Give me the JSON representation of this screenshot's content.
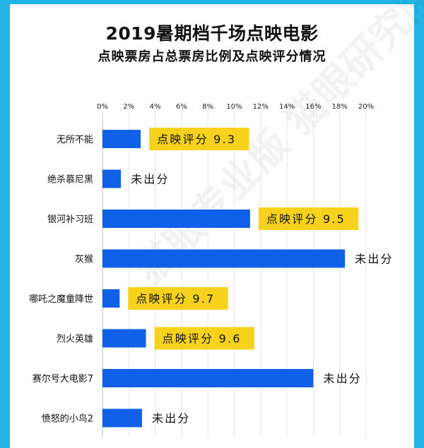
{
  "title": "2019暑期档千场点映电影",
  "subtitle": "点映票房占总票房比例及点映评分情况",
  "watermark": "猫眼专业版 猫眼研究院",
  "colors": {
    "bar": "#1060e8",
    "label_bg": "#f7d21c",
    "frame": "#24b5e6"
  },
  "chart_data": {
    "type": "bar",
    "orientation": "horizontal",
    "title": "2019暑期档千场点映电影",
    "subtitle": "点映票房占总票房比例及点映评分情况",
    "xlim": [
      0,
      20
    ],
    "xticks": [
      "0%",
      "2%",
      "4%",
      "6%",
      "8%",
      "10%",
      "12%",
      "14%",
      "16%",
      "18%",
      "20%"
    ],
    "categories": [
      "无所不能",
      "绝杀慕尼黑",
      "银河补习班",
      "灰猴",
      "哪吒之魔童降世",
      "烈火英雄",
      "赛尔号大电影7",
      "愤怒的小鸟2"
    ],
    "values": [
      2.9,
      1.4,
      11.2,
      18.4,
      1.3,
      3.3,
      16.0,
      3.0
    ],
    "annotations": [
      "点映评分 9.3",
      "未出分",
      "点映评分 9.5",
      "未出分",
      "点映评分 9.7",
      "点映评分 9.6",
      "未出分",
      "未出分"
    ],
    "annotation_highlight": [
      true,
      false,
      true,
      false,
      true,
      true,
      false,
      false
    ],
    "grid": true
  }
}
